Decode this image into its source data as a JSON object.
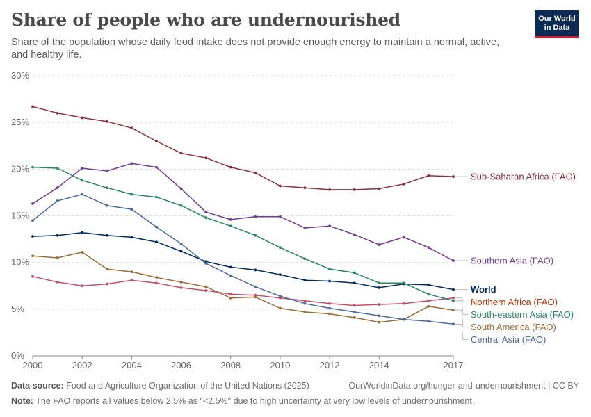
{
  "header": {
    "title": "Share of people who are undernourished",
    "subtitle": "Share of the population whose daily food intake does not provide enough energy to maintain a normal, active, and healthy life.",
    "logo_line1": "Our World",
    "logo_line2": "in Data"
  },
  "footer": {
    "source_label": "Data source:",
    "source_text": "Food and Agriculture Organization of the United Nations (2025)",
    "url_text": "OurWorldinData.org/hunger-and-undernourishment | CC BY",
    "note_label": "Note:",
    "note_text": "The FAO reports all values below 2.5% as \"<2.5%\" due to high uncertainty at very low levels of undernourishment."
  },
  "chart_data": {
    "type": "line",
    "title": "Share of people who are undernourished",
    "xlabel": "",
    "ylabel": "",
    "x": [
      2000,
      2001,
      2002,
      2003,
      2004,
      2005,
      2006,
      2007,
      2008,
      2009,
      2010,
      2011,
      2012,
      2013,
      2014,
      2015,
      2016,
      2017
    ],
    "xticks": [
      2000,
      2002,
      2004,
      2006,
      2008,
      2010,
      2012,
      2014,
      2017
    ],
    "yticks": [
      "0%",
      "5%",
      "10%",
      "15%",
      "20%",
      "25%",
      "30%"
    ],
    "ylim": [
      0,
      30
    ],
    "grid": "horizontal dashed",
    "legend": "line-end labels at right",
    "series": [
      {
        "name": "Sub-Saharan Africa (FAO)",
        "color": "#883039",
        "values": [
          26.7,
          26.0,
          25.5,
          25.1,
          24.4,
          23.0,
          21.7,
          21.2,
          20.2,
          19.6,
          18.2,
          18.0,
          17.8,
          17.8,
          17.9,
          18.4,
          19.3,
          19.2
        ]
      },
      {
        "name": "Southern Asia (FAO)",
        "color": "#6d3e91",
        "values": [
          16.3,
          18.0,
          20.1,
          19.8,
          20.6,
          20.2,
          17.9,
          15.4,
          14.6,
          14.9,
          14.9,
          13.7,
          13.9,
          13.0,
          11.9,
          12.7,
          11.6,
          10.2
        ]
      },
      {
        "name": "World",
        "color": "#00295b",
        "values": [
          12.8,
          12.9,
          13.2,
          12.9,
          12.7,
          12.2,
          11.2,
          10.1,
          9.5,
          9.2,
          8.7,
          8.1,
          8.0,
          7.8,
          7.3,
          7.7,
          7.6,
          7.1
        ]
      },
      {
        "name": "Northern Africa (FAO)",
        "color": "#c15065",
        "values": [
          8.5,
          7.9,
          7.5,
          7.7,
          8.1,
          7.8,
          7.3,
          7.0,
          6.6,
          6.5,
          6.2,
          5.9,
          5.6,
          5.4,
          5.5,
          5.6,
          5.9,
          6.2
        ]
      },
      {
        "name": "South-eastern Asia (FAO)",
        "color": "#2c8465",
        "values": [
          20.2,
          20.1,
          18.8,
          18.0,
          17.3,
          17.0,
          16.1,
          14.8,
          13.9,
          12.9,
          11.6,
          10.4,
          9.3,
          8.9,
          7.8,
          7.8,
          6.6,
          5.9
        ]
      },
      {
        "name": "South America (FAO)",
        "color": "#996d39",
        "values": [
          10.7,
          10.5,
          11.1,
          9.3,
          9.0,
          8.4,
          7.9,
          7.4,
          6.2,
          6.3,
          5.1,
          4.7,
          4.5,
          4.1,
          3.6,
          3.9,
          5.3,
          4.9
        ]
      },
      {
        "name": "Central Asia (FAO)",
        "color": "#4c6a9c",
        "values": [
          14.5,
          16.6,
          17.3,
          16.1,
          15.7,
          13.8,
          12.0,
          9.9,
          8.6,
          7.4,
          6.4,
          5.6,
          5.1,
          4.7,
          4.3,
          3.9,
          3.7,
          3.4
        ]
      }
    ],
    "label_colors": {
      "Sub-Saharan Africa (FAO)": "#883039",
      "Southern Asia (FAO)": "#6d3e91",
      "World": "#00295b",
      "Northern Africa (FAO)": "#b13507",
      "South-eastern Asia (FAO)": "#2c8465",
      "South America (FAO)": "#996d39",
      "Central Asia (FAO)": "#4c6a9c"
    }
  }
}
